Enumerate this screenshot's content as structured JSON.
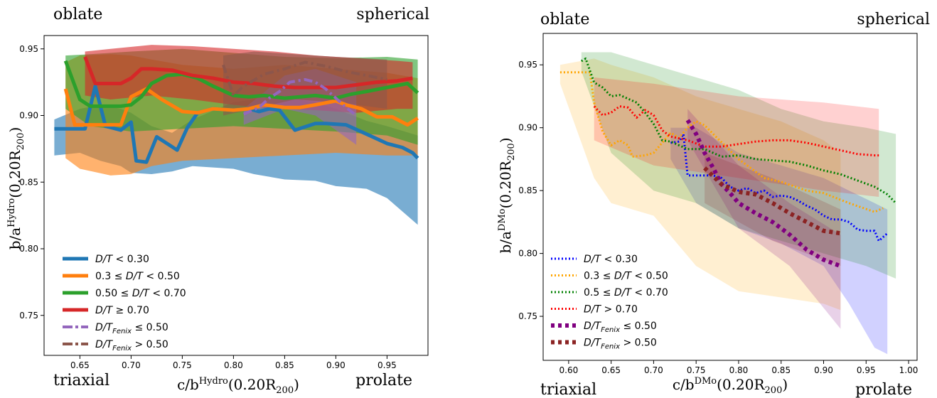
{
  "chart_data": [
    {
      "type": "line",
      "title": "",
      "corner_labels": {
        "top_left": "oblate",
        "top_right": "spherical",
        "bottom_left": "triaxial",
        "bottom_right": "prolate"
      },
      "xlabel": {
        "main": "c/b",
        "sup": "Hydro",
        "tail": "(0.20R",
        "sub": "200",
        "end": ")"
      },
      "ylabel": {
        "main": "b/a",
        "sup": "Hydro",
        "tail": "(0.20R",
        "sub": "200",
        "end": ")"
      },
      "xlim": [
        0.615,
        0.99
      ],
      "ylim": [
        0.72,
        0.96
      ],
      "xticks": [
        "0.65",
        "0.70",
        "0.75",
        "0.80",
        "0.85",
        "0.90",
        "0.95"
      ],
      "yticks": [
        "0.75",
        "0.80",
        "0.85",
        "0.90",
        "0.95"
      ],
      "series": [
        {
          "label": "D/T < 0.30",
          "color": "#1f77b4",
          "style": "solid",
          "x": [
            0.625,
            0.645,
            0.655,
            0.665,
            0.675,
            0.69,
            0.7,
            0.705,
            0.715,
            0.725,
            0.745,
            0.755,
            0.765,
            0.78,
            0.8,
            0.815,
            0.825,
            0.835,
            0.845,
            0.86,
            0.88,
            0.89,
            0.91,
            0.93,
            0.95,
            0.965,
            0.975,
            0.98
          ],
          "y": [
            0.89,
            0.89,
            0.89,
            0.922,
            0.892,
            0.889,
            0.895,
            0.866,
            0.865,
            0.884,
            0.874,
            0.891,
            0.902,
            0.905,
            0.904,
            0.905,
            0.903,
            0.905,
            0.904,
            0.889,
            0.894,
            0.894,
            0.893,
            0.886,
            0.879,
            0.876,
            0.872,
            0.868
          ],
          "band": [
            [
              0.625,
              0.65,
              0.67,
              0.69,
              0.7,
              0.72,
              0.74,
              0.76,
              0.8,
              0.82,
              0.85,
              0.88,
              0.9,
              0.93,
              0.95,
              0.98
            ],
            [
              0.87,
              0.872,
              0.866,
              0.862,
              0.857,
              0.856,
              0.858,
              0.862,
              0.86,
              0.856,
              0.852,
              0.851,
              0.847,
              0.845,
              0.838,
              0.818
            ],
            [
              0.897,
              0.905,
              0.908,
              0.905,
              0.902,
              0.892,
              0.887,
              0.897,
              0.91,
              0.912,
              0.913,
              0.91,
              0.905,
              0.896,
              0.892,
              0.885
            ]
          ]
        },
        {
          "label": "0.3 ≤ D/T < 0.50",
          "color": "#ff7f0e",
          "style": "solid",
          "x": [
            0.636,
            0.645,
            0.66,
            0.675,
            0.69,
            0.7,
            0.715,
            0.73,
            0.75,
            0.765,
            0.78,
            0.8,
            0.815,
            0.83,
            0.85,
            0.865,
            0.88,
            0.9,
            0.91,
            0.925,
            0.94,
            0.955,
            0.97,
            0.98
          ],
          "y": [
            0.92,
            0.893,
            0.893,
            0.893,
            0.893,
            0.914,
            0.92,
            0.912,
            0.903,
            0.902,
            0.905,
            0.904,
            0.905,
            0.908,
            0.906,
            0.906,
            0.908,
            0.911,
            0.908,
            0.905,
            0.899,
            0.899,
            0.893,
            0.898
          ],
          "band": [
            [
              0.636,
              0.65,
              0.68,
              0.7,
              0.72,
              0.75,
              0.8,
              0.85,
              0.9,
              0.95,
              0.98
            ],
            [
              0.868,
              0.86,
              0.855,
              0.856,
              0.862,
              0.866,
              0.868,
              0.87,
              0.872,
              0.87,
              0.87
            ],
            [
              0.94,
              0.945,
              0.946,
              0.945,
              0.942,
              0.938,
              0.935,
              0.938,
              0.935,
              0.932,
              0.928
            ]
          ]
        },
        {
          "label": "0.50 ≤ D/T < 0.70",
          "color": "#2ca02c",
          "style": "solid",
          "x": [
            0.636,
            0.65,
            0.66,
            0.675,
            0.69,
            0.7,
            0.71,
            0.72,
            0.735,
            0.75,
            0.765,
            0.78,
            0.8,
            0.815,
            0.83,
            0.85,
            0.865,
            0.88,
            0.9,
            0.915,
            0.93,
            0.95,
            0.97,
            0.98
          ],
          "y": [
            0.941,
            0.912,
            0.907,
            0.907,
            0.907,
            0.908,
            0.914,
            0.924,
            0.93,
            0.931,
            0.928,
            0.922,
            0.915,
            0.914,
            0.915,
            0.913,
            0.914,
            0.915,
            0.913,
            0.916,
            0.918,
            0.921,
            0.924,
            0.917
          ],
          "band": [
            [
              0.636,
              0.66,
              0.7,
              0.75,
              0.8,
              0.85,
              0.9,
              0.95,
              0.98
            ],
            [
              0.905,
              0.892,
              0.888,
              0.89,
              0.892,
              0.89,
              0.888,
              0.885,
              0.878
            ],
            [
              0.945,
              0.946,
              0.948,
              0.95,
              0.947,
              0.944,
              0.943,
              0.944,
              0.942
            ]
          ]
        },
        {
          "label": "D/T ≥ 0.70",
          "color": "#d62728",
          "style": "solid",
          "x": [
            0.655,
            0.665,
            0.68,
            0.69,
            0.7,
            0.71,
            0.72,
            0.74,
            0.76,
            0.78,
            0.8,
            0.82,
            0.84,
            0.86,
            0.88,
            0.9,
            0.92,
            0.94,
            0.96,
            0.975
          ],
          "y": [
            0.944,
            0.924,
            0.924,
            0.924,
            0.928,
            0.935,
            0.935,
            0.934,
            0.93,
            0.928,
            0.925,
            0.924,
            0.922,
            0.921,
            0.921,
            0.921,
            0.923,
            0.925,
            0.926,
            0.928
          ],
          "band": [
            [
              0.655,
              0.68,
              0.72,
              0.76,
              0.8,
              0.84,
              0.88,
              0.92,
              0.96,
              0.975
            ],
            [
              0.915,
              0.912,
              0.915,
              0.912,
              0.908,
              0.905,
              0.904,
              0.902,
              0.905,
              0.905
            ],
            [
              0.948,
              0.95,
              0.953,
              0.952,
              0.95,
              0.948,
              0.945,
              0.943,
              0.941,
              0.94
            ]
          ]
        },
        {
          "label": "D/T_Fenix ≤ 0.50",
          "color": "#9467bd",
          "style": "dashdot",
          "x": [
            0.81,
            0.825,
            0.835,
            0.845,
            0.855,
            0.87,
            0.88,
            0.89,
            0.9,
            0.91,
            0.92
          ],
          "y": [
            0.901,
            0.906,
            0.913,
            0.918,
            0.925,
            0.927,
            0.925,
            0.92,
            0.913,
            0.906,
            0.9
          ],
          "band": [
            [
              0.81,
              0.85,
              0.88,
              0.92
            ],
            [
              0.893,
              0.905,
              0.9,
              0.878
            ],
            [
              0.905,
              0.93,
              0.935,
              0.925
            ]
          ]
        },
        {
          "label": "D/T_Fenix > 0.50",
          "color": "#8c564b",
          "style": "dashdot",
          "x": [
            0.79,
            0.8,
            0.81,
            0.83,
            0.85,
            0.87,
            0.89,
            0.91,
            0.93,
            0.95
          ],
          "y": [
            0.938,
            0.915,
            0.922,
            0.931,
            0.935,
            0.94,
            0.937,
            0.933,
            0.93,
            0.927
          ],
          "band": [
            [
              0.79,
              0.82,
              0.86,
              0.9,
              0.95
            ],
            [
              0.9,
              0.905,
              0.912,
              0.91,
              0.905
            ],
            [
              0.945,
              0.948,
              0.946,
              0.944,
              0.942
            ]
          ]
        }
      ]
    },
    {
      "type": "line",
      "title": "",
      "corner_labels": {
        "top_left": "oblate",
        "top_right": "spherical",
        "bottom_left": "triaxial",
        "bottom_right": "prolate"
      },
      "xlabel": {
        "main": "c/b",
        "sup": "DMo",
        "tail": "(0.20R",
        "sub": "200",
        "end": ")"
      },
      "ylabel": {
        "main": "b/a",
        "sup": "DMo",
        "tail": "(0.20R",
        "sub": "200",
        "end": ")"
      },
      "xlim": [
        0.57,
        1.01
      ],
      "ylim": [
        0.715,
        0.975
      ],
      "xticks": [
        "0.60",
        "0.65",
        "0.70",
        "0.75",
        "0.80",
        "0.85",
        "0.90",
        "0.95",
        "1.00"
      ],
      "yticks": [
        "0.75",
        "0.80",
        "0.85",
        "0.90",
        "0.95"
      ],
      "series": [
        {
          "label": "D/T < 0.30",
          "color": "#0000ff",
          "style": "dotted",
          "x": [
            0.72,
            0.73,
            0.735,
            0.74,
            0.75,
            0.76,
            0.77,
            0.78,
            0.79,
            0.8,
            0.81,
            0.82,
            0.83,
            0.84,
            0.85,
            0.86,
            0.87,
            0.88,
            0.89,
            0.9,
            0.91,
            0.92,
            0.93,
            0.94,
            0.95,
            0.96,
            0.965,
            0.975
          ],
          "y": [
            0.888,
            0.889,
            0.895,
            0.862,
            0.862,
            0.862,
            0.862,
            0.86,
            0.853,
            0.85,
            0.852,
            0.848,
            0.85,
            0.845,
            0.846,
            0.845,
            0.842,
            0.838,
            0.835,
            0.83,
            0.827,
            0.827,
            0.825,
            0.819,
            0.818,
            0.818,
            0.81,
            0.816
          ],
          "band": [
            [
              0.72,
              0.75,
              0.8,
              0.85,
              0.9,
              0.93,
              0.96,
              0.975
            ],
            [
              0.875,
              0.84,
              0.82,
              0.808,
              0.79,
              0.76,
              0.725,
              0.72
            ],
            [
              0.9,
              0.9,
              0.88,
              0.87,
              0.86,
              0.85,
              0.84,
              0.835
            ]
          ]
        },
        {
          "label": "0.3 ≤ D/T < 0.50",
          "color": "#ffa500",
          "style": "dotted",
          "x": [
            0.59,
            0.6,
            0.61,
            0.62,
            0.625,
            0.63,
            0.64,
            0.65,
            0.66,
            0.67,
            0.675,
            0.69,
            0.7,
            0.71,
            0.72,
            0.73,
            0.74,
            0.75,
            0.76,
            0.77,
            0.8,
            0.83,
            0.85,
            0.88,
            0.9,
            0.93,
            0.96,
            0.97
          ],
          "y": [
            0.944,
            0.944,
            0.944,
            0.944,
            0.944,
            0.92,
            0.897,
            0.886,
            0.89,
            0.886,
            0.877,
            0.878,
            0.88,
            0.888,
            0.896,
            0.892,
            0.9,
            0.905,
            0.902,
            0.895,
            0.875,
            0.86,
            0.857,
            0.85,
            0.848,
            0.84,
            0.833,
            0.836
          ],
          "band": [
            [
              0.59,
              0.63,
              0.65,
              0.7,
              0.75,
              0.8,
              0.85,
              0.9,
              0.92
            ],
            [
              0.935,
              0.86,
              0.84,
              0.83,
              0.79,
              0.77,
              0.765,
              0.76,
              0.755
            ],
            [
              0.95,
              0.955,
              0.95,
              0.94,
              0.925,
              0.915,
              0.905,
              0.89,
              0.88
            ]
          ]
        },
        {
          "label": "0.5 ≤ D/T < 0.70",
          "color": "#008000",
          "style": "dotted",
          "x": [
            0.615,
            0.62,
            0.63,
            0.64,
            0.65,
            0.66,
            0.67,
            0.68,
            0.69,
            0.7,
            0.71,
            0.72,
            0.74,
            0.76,
            0.78,
            0.8,
            0.82,
            0.84,
            0.86,
            0.88,
            0.9,
            0.92,
            0.94,
            0.96,
            0.975,
            0.985
          ],
          "y": [
            0.953,
            0.955,
            0.936,
            0.932,
            0.925,
            0.926,
            0.923,
            0.92,
            0.912,
            0.903,
            0.89,
            0.889,
            0.883,
            0.883,
            0.877,
            0.878,
            0.875,
            0.874,
            0.873,
            0.87,
            0.866,
            0.863,
            0.858,
            0.853,
            0.847,
            0.84
          ],
          "band": [
            [
              0.615,
              0.65,
              0.7,
              0.75,
              0.8,
              0.85,
              0.9,
              0.95,
              0.985
            ],
            [
              0.945,
              0.88,
              0.85,
              0.84,
              0.82,
              0.81,
              0.8,
              0.79,
              0.78
            ],
            [
              0.96,
              0.96,
              0.95,
              0.94,
              0.93,
              0.915,
              0.905,
              0.9,
              0.895
            ]
          ]
        },
        {
          "label": "D/T > 0.70",
          "color": "#ff0000",
          "style": "dotted",
          "x": [
            0.63,
            0.64,
            0.65,
            0.66,
            0.67,
            0.68,
            0.69,
            0.7,
            0.71,
            0.72,
            0.74,
            0.76,
            0.78,
            0.8,
            0.82,
            0.84,
            0.86,
            0.88,
            0.9,
            0.92,
            0.94,
            0.96,
            0.965
          ],
          "y": [
            0.917,
            0.91,
            0.912,
            0.917,
            0.916,
            0.908,
            0.914,
            0.91,
            0.898,
            0.893,
            0.89,
            0.885,
            0.885,
            0.887,
            0.889,
            0.89,
            0.89,
            0.888,
            0.885,
            0.882,
            0.879,
            0.878,
            0.878
          ],
          "band": [
            [
              0.63,
              0.7,
              0.8,
              0.9,
              0.965
            ],
            [
              0.89,
              0.87,
              0.86,
              0.85,
              0.845
            ],
            [
              0.94,
              0.935,
              0.925,
              0.92,
              0.915
            ]
          ]
        },
        {
          "label": "D/T_Fenix ≤ 0.50",
          "color": "#800080",
          "style": "dotted",
          "x": [
            0.74,
            0.75,
            0.76,
            0.77,
            0.78,
            0.79,
            0.8,
            0.82,
            0.84,
            0.86,
            0.88,
            0.9,
            0.92
          ],
          "y": [
            0.906,
            0.895,
            0.88,
            0.868,
            0.855,
            0.848,
            0.84,
            0.832,
            0.825,
            0.815,
            0.803,
            0.795,
            0.79
          ],
          "band": [
            [
              0.74,
              0.8,
              0.86,
              0.92
            ],
            [
              0.89,
              0.82,
              0.79,
              0.74
            ],
            [
              0.915,
              0.87,
              0.84,
              0.815
            ]
          ]
        },
        {
          "label": "D/T_Fenix > 0.50",
          "color": "#8b2323",
          "style": "dotted",
          "x": [
            0.76,
            0.78,
            0.8,
            0.82,
            0.84,
            0.86,
            0.88,
            0.9,
            0.92
          ],
          "y": [
            0.868,
            0.855,
            0.849,
            0.847,
            0.84,
            0.832,
            0.825,
            0.818,
            0.816
          ],
          "band": [
            [
              0.76,
              0.84,
              0.92
            ],
            [
              0.84,
              0.81,
              0.79
            ],
            [
              0.88,
              0.86,
              0.835
            ]
          ]
        }
      ]
    }
  ]
}
